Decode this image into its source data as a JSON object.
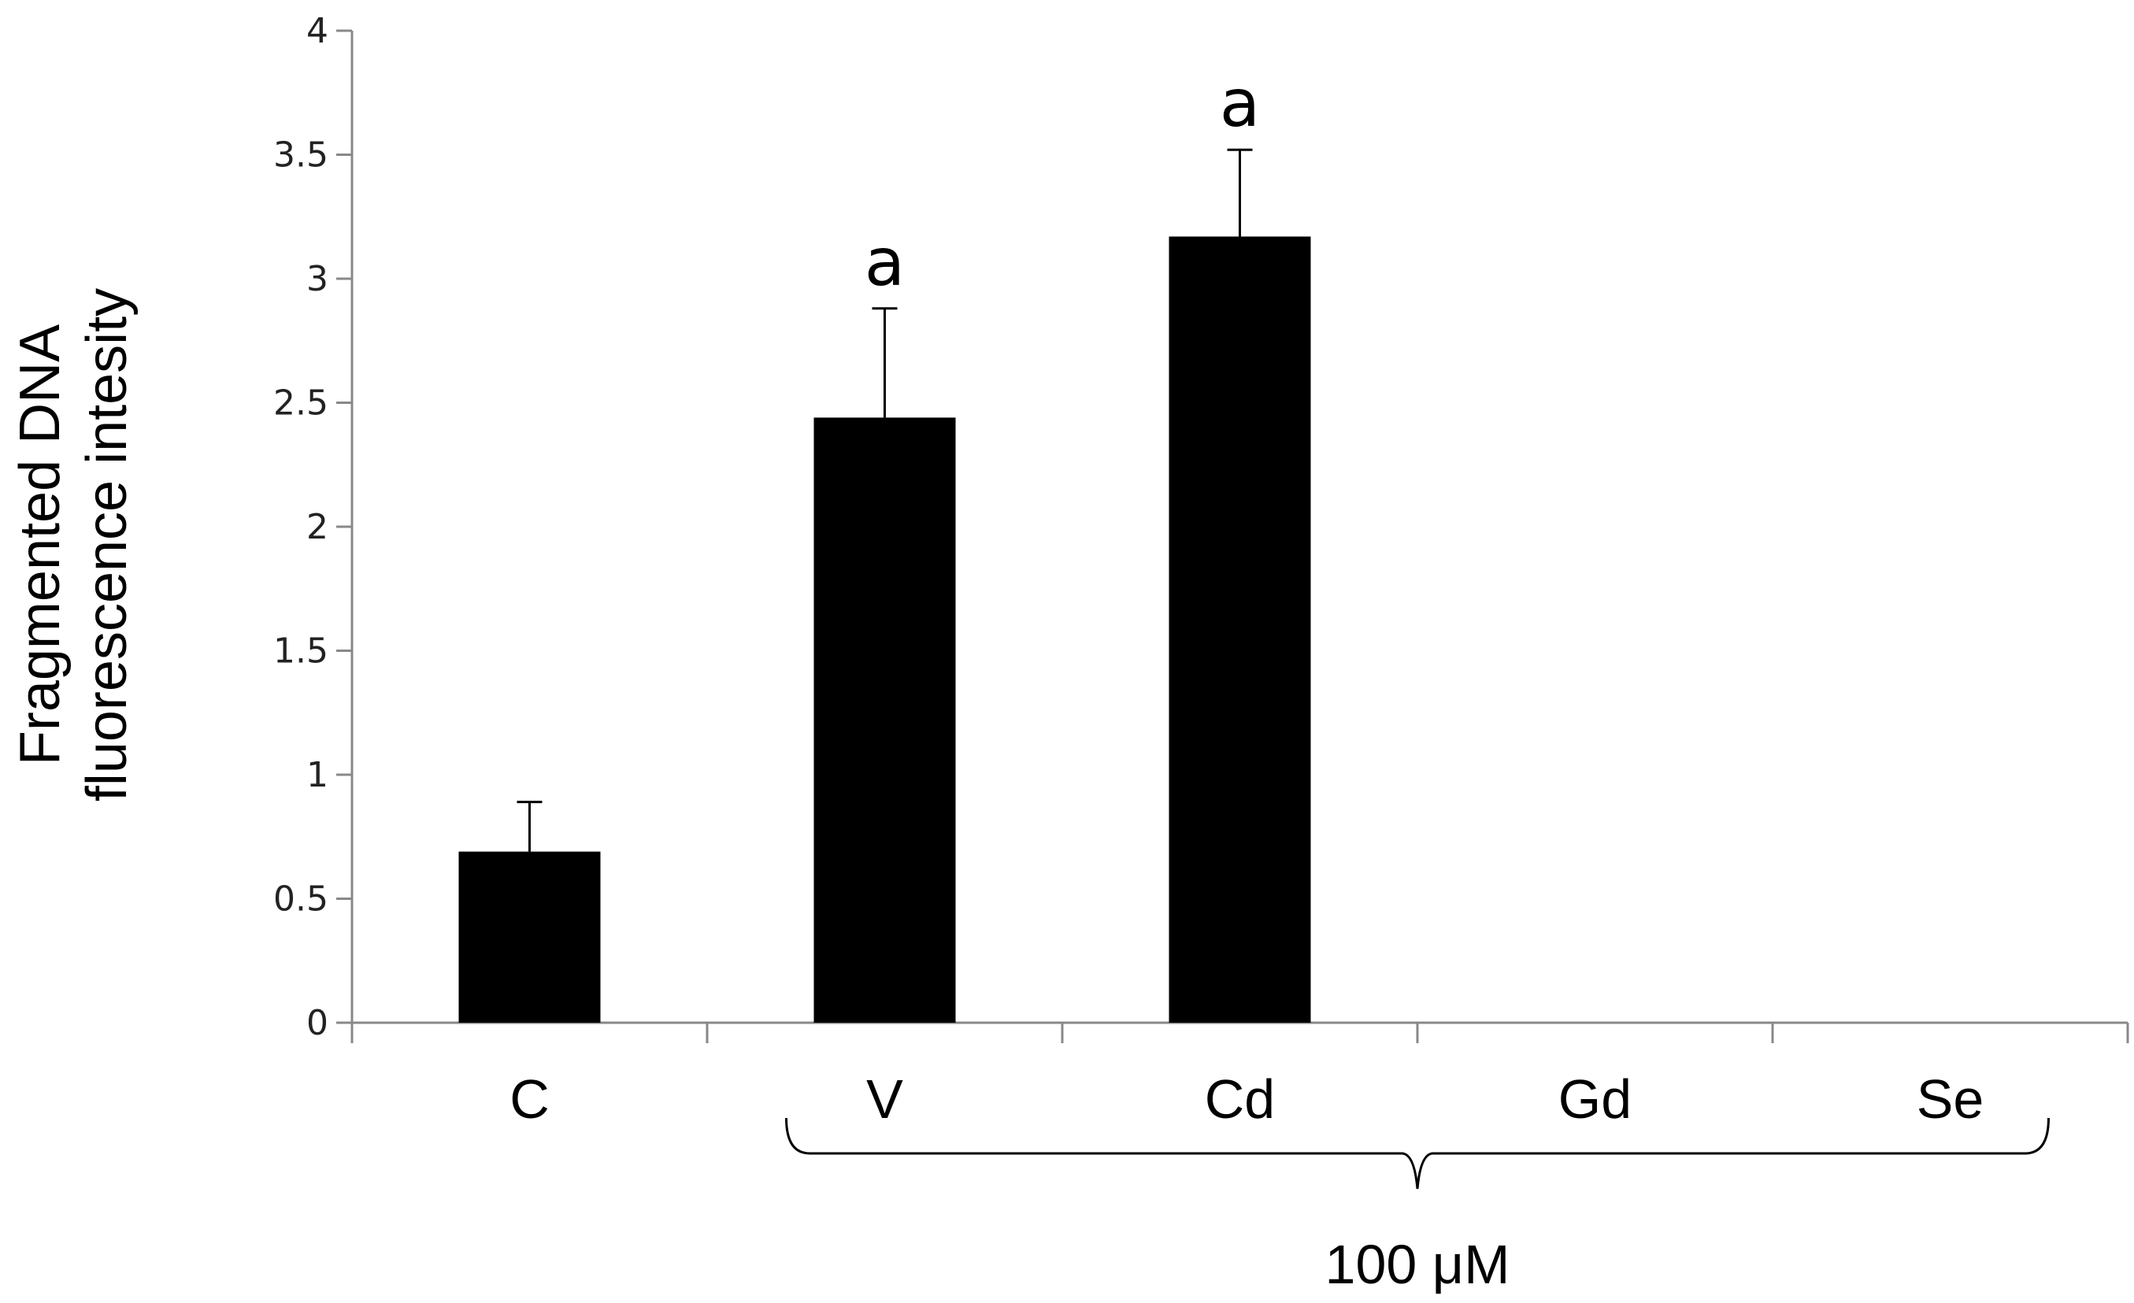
{
  "chart_data": {
    "type": "bar",
    "title": "",
    "ylabel_lines": [
      "Fragmented DNA",
      "fluorescence intesity"
    ],
    "xlabel": "",
    "ylim": [
      0,
      4
    ],
    "yticks": [
      0,
      0.5,
      1,
      1.5,
      2,
      2.5,
      3,
      3.5,
      4
    ],
    "ytick_labels": [
      "0",
      "0.5",
      "1",
      "1.5",
      "2",
      "2.5",
      "3",
      "3.5",
      "4"
    ],
    "categories": [
      "C",
      "V",
      "Cd",
      "Gd",
      "Se"
    ],
    "values": [
      0.69,
      2.44,
      3.17,
      0,
      0
    ],
    "errors": [
      0.2,
      0.44,
      0.35,
      null,
      null
    ],
    "annotations": [
      "",
      "a",
      "a",
      "",
      ""
    ],
    "bracket": {
      "label": "100 μM",
      "from_category": "V",
      "to_category": "Se"
    },
    "bar_color": "#000000",
    "axis_color": "#888888",
    "grid": false,
    "legend": "none"
  }
}
